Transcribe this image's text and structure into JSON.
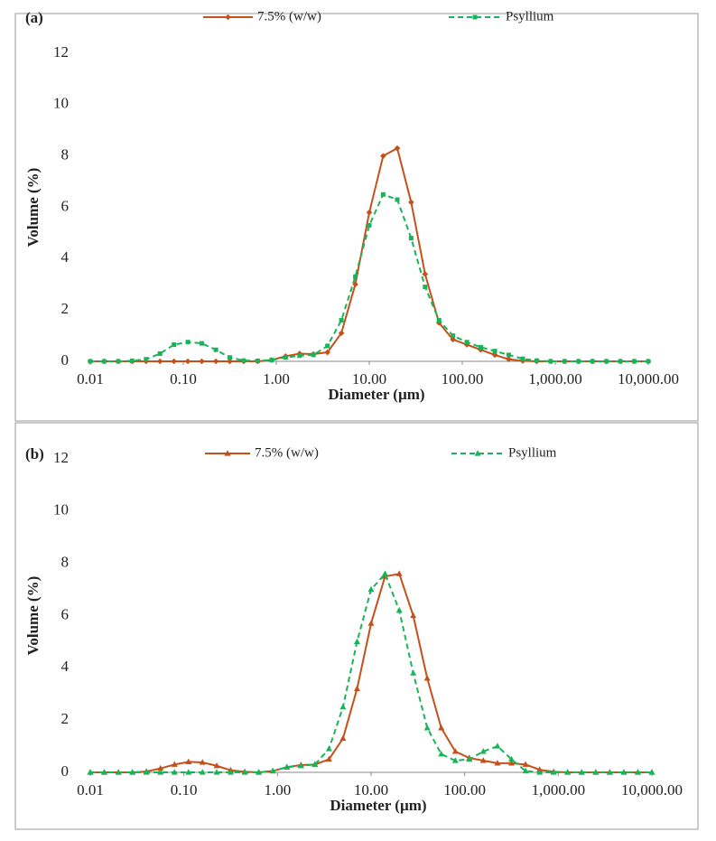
{
  "chart_data": [
    {
      "type": "line",
      "title": "(a)",
      "x_label": "Diameter (µm)",
      "y_label": "Volume (%)",
      "xscale": "log",
      "xlim": [
        0.01,
        10000
      ],
      "xticks": [
        0.01,
        {
          "value": 0.1,
          "label": "0.10"
        },
        {
          "value": 1,
          "label": "1.00"
        },
        {
          "value": 10,
          "label": "10.00"
        },
        {
          "value": 100,
          "label": "100.00"
        },
        {
          "value": 1000,
          "label": "1,000.00"
        },
        {
          "value": 10000,
          "label": "10,000.00"
        }
      ],
      "ylim": [
        0,
        12
      ],
      "yticks": [
        0,
        2,
        4,
        6,
        8,
        10,
        12
      ],
      "grid": false,
      "x": [
        0.01,
        0.0141,
        0.02,
        0.0282,
        0.0398,
        0.0562,
        0.0794,
        0.112,
        0.158,
        0.224,
        0.316,
        0.447,
        0.631,
        0.891,
        1.26,
        1.78,
        2.51,
        3.55,
        5.01,
        7.08,
        10,
        14.1,
        20,
        28.2,
        39.8,
        56.2,
        79.4,
        112,
        158,
        224,
        316,
        447,
        631,
        891,
        1259,
        1778,
        2512,
        3548,
        5012,
        7079,
        10000
      ],
      "series": [
        {
          "name": "7.5% (w/w)",
          "color": "#c5501a",
          "dash": false,
          "marker": "diamond",
          "values": [
            0,
            0,
            0,
            0,
            0,
            0,
            0,
            0,
            0,
            0,
            0,
            0,
            0,
            0.05,
            0.2,
            0.3,
            0.28,
            0.35,
            1.1,
            3.0,
            5.8,
            8.0,
            8.3,
            6.2,
            3.4,
            1.5,
            0.85,
            0.65,
            0.45,
            0.25,
            0.08,
            0.02,
            0,
            0,
            0,
            0,
            0,
            0,
            0,
            0,
            0
          ]
        },
        {
          "name": "Psyllium",
          "color": "#19b45a",
          "dash": true,
          "marker": "square",
          "values": [
            0,
            0,
            0,
            0.02,
            0.08,
            0.3,
            0.65,
            0.75,
            0.7,
            0.45,
            0.15,
            0.03,
            0.02,
            0.05,
            0.15,
            0.22,
            0.25,
            0.6,
            1.6,
            3.3,
            5.3,
            6.5,
            6.3,
            4.8,
            2.9,
            1.6,
            1.0,
            0.75,
            0.55,
            0.4,
            0.25,
            0.1,
            0.03,
            0,
            0,
            0,
            0,
            0,
            0,
            0,
            0
          ]
        }
      ]
    },
    {
      "type": "line",
      "title": "(b)",
      "x_label": "Diameter (µm)",
      "y_label": "Volume (%)",
      "xscale": "log",
      "xlim": [
        0.01,
        10000
      ],
      "xticks": [
        0.01,
        {
          "value": 0.1,
          "label": "0.10"
        },
        {
          "value": 1,
          "label": "1.00"
        },
        {
          "value": 10,
          "label": "10.00"
        },
        {
          "value": 100,
          "label": "100.00"
        },
        {
          "value": 1000,
          "label": "1,000.00"
        },
        {
          "value": 10000,
          "label": "10,000.00"
        }
      ],
      "ylim": [
        0,
        12
      ],
      "yticks": [
        0,
        2,
        4,
        6,
        8,
        10,
        12
      ],
      "grid": false,
      "x": [
        0.01,
        0.0141,
        0.02,
        0.0282,
        0.0398,
        0.0562,
        0.0794,
        0.112,
        0.158,
        0.224,
        0.316,
        0.447,
        0.631,
        0.891,
        1.26,
        1.78,
        2.51,
        3.55,
        5.01,
        7.08,
        10,
        14.1,
        20,
        28.2,
        39.8,
        56.2,
        79.4,
        112,
        158,
        224,
        316,
        447,
        631,
        891,
        1259,
        1778,
        2512,
        3548,
        5012,
        7079,
        10000
      ],
      "series": [
        {
          "name": "7.5% (w/w)",
          "color": "#c5501a",
          "dash": false,
          "marker": "triangle",
          "values": [
            0,
            0,
            0,
            0,
            0.03,
            0.15,
            0.3,
            0.4,
            0.38,
            0.25,
            0.08,
            0.02,
            0,
            0.05,
            0.2,
            0.28,
            0.3,
            0.5,
            1.3,
            3.2,
            5.7,
            7.5,
            7.6,
            6.0,
            3.6,
            1.7,
            0.8,
            0.55,
            0.45,
            0.35,
            0.35,
            0.3,
            0.1,
            0.02,
            0,
            0,
            0,
            0,
            0,
            0,
            0
          ]
        },
        {
          "name": "Psyllium",
          "color": "#19b45a",
          "dash": true,
          "marker": "triangle",
          "values": [
            0,
            0,
            0,
            0,
            0,
            0,
            0,
            0,
            0,
            0,
            0,
            0,
            0,
            0.05,
            0.2,
            0.25,
            0.3,
            0.9,
            2.5,
            5.0,
            7.0,
            7.6,
            6.2,
            3.8,
            1.7,
            0.7,
            0.45,
            0.5,
            0.8,
            1.0,
            0.5,
            0.05,
            0,
            0,
            0,
            0,
            0,
            0,
            0,
            0,
            0
          ]
        }
      ]
    }
  ]
}
